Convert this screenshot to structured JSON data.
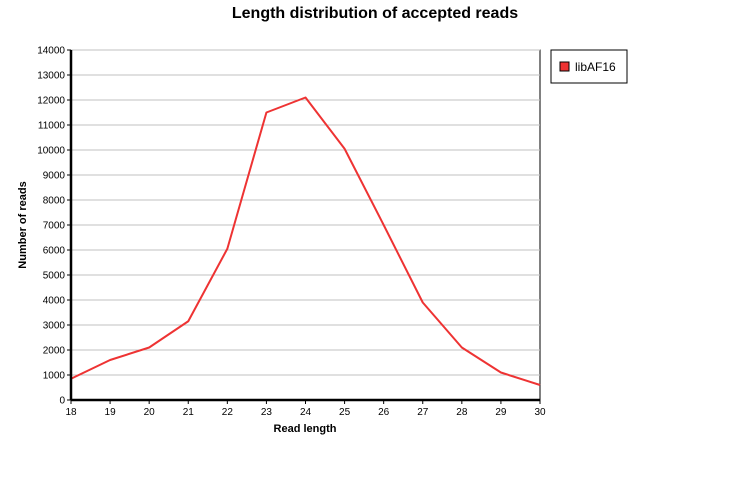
{
  "chart_data": {
    "type": "line",
    "title": "Length distribution of accepted reads",
    "xlabel": "Read length",
    "ylabel": "Number of reads",
    "x": [
      18,
      19,
      20,
      21,
      22,
      23,
      24,
      25,
      26,
      27,
      28,
      29,
      30
    ],
    "series": [
      {
        "name": "libAF16",
        "color": "#ee3333",
        "values": [
          850,
          1600,
          2100,
          3150,
          6050,
          11500,
          12100,
          10050,
          7000,
          3900,
          2100,
          1100,
          600
        ]
      }
    ],
    "xlim": [
      18,
      30
    ],
    "ylim": [
      0,
      14000
    ],
    "yticks": [
      0,
      1000,
      2000,
      3000,
      4000,
      5000,
      6000,
      7000,
      8000,
      9000,
      10000,
      11000,
      12000,
      13000,
      14000
    ],
    "xticks": [
      18,
      19,
      20,
      21,
      22,
      23,
      24,
      25,
      26,
      27,
      28,
      29,
      30
    ],
    "grid": "horizontal",
    "legend": "right"
  }
}
